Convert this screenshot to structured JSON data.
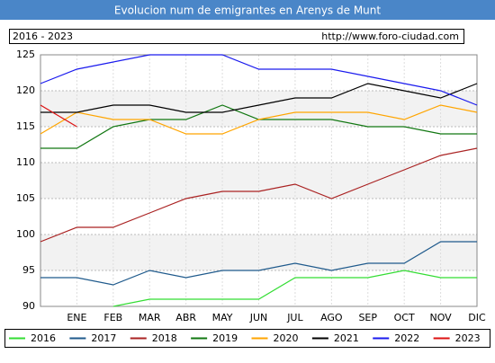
{
  "chart_data": {
    "type": "line",
    "title": "Evolucion num de emigrantes en Arenys de Munt",
    "period": "2016 - 2023",
    "source": "http://www.foro-ciudad.com",
    "categories": [
      null,
      "ENE",
      "FEB",
      "MAR",
      "ABR",
      "MAY",
      "JUN",
      "JUL",
      "AGO",
      "SEP",
      "OCT",
      "NOV",
      "DIC"
    ],
    "series": [
      {
        "name": "2016",
        "color": "#33dd33",
        "values": [
          null,
          null,
          90,
          91,
          91,
          91,
          91,
          94,
          94,
          94,
          95,
          94,
          94
        ]
      },
      {
        "name": "2017",
        "color": "#1f5a8c",
        "values": [
          94,
          94,
          93,
          95,
          94,
          95,
          95,
          96,
          95,
          96,
          96,
          99,
          99
        ]
      },
      {
        "name": "2018",
        "color": "#aa2222",
        "values": [
          99,
          101,
          101,
          103,
          105,
          106,
          106,
          107,
          105,
          107,
          109,
          111,
          112
        ]
      },
      {
        "name": "2019",
        "color": "#117711",
        "values": [
          112,
          112,
          115,
          116,
          116,
          118,
          116,
          116,
          116,
          115,
          115,
          114,
          114
        ]
      },
      {
        "name": "2020",
        "color": "#ffa500",
        "values": [
          114,
          117,
          116,
          116,
          114,
          114,
          116,
          117,
          117,
          117,
          116,
          118,
          117
        ]
      },
      {
        "name": "2021",
        "color": "#000000",
        "values": [
          117,
          117,
          118,
          118,
          117,
          117,
          118,
          119,
          119,
          121,
          120,
          119,
          121
        ]
      },
      {
        "name": "2022",
        "color": "#1a1aee",
        "values": [
          121,
          123,
          124,
          125,
          125,
          125,
          123,
          123,
          123,
          122,
          121,
          120,
          118
        ]
      },
      {
        "name": "2023",
        "color": "#dd1111",
        "values": [
          118,
          115,
          null,
          null,
          null,
          null,
          null,
          null,
          null,
          null,
          null,
          null,
          null
        ]
      }
    ],
    "ylim": [
      90,
      125
    ],
    "yticks": [
      90,
      95,
      100,
      105,
      110,
      115,
      120,
      125
    ],
    "grid": true
  }
}
